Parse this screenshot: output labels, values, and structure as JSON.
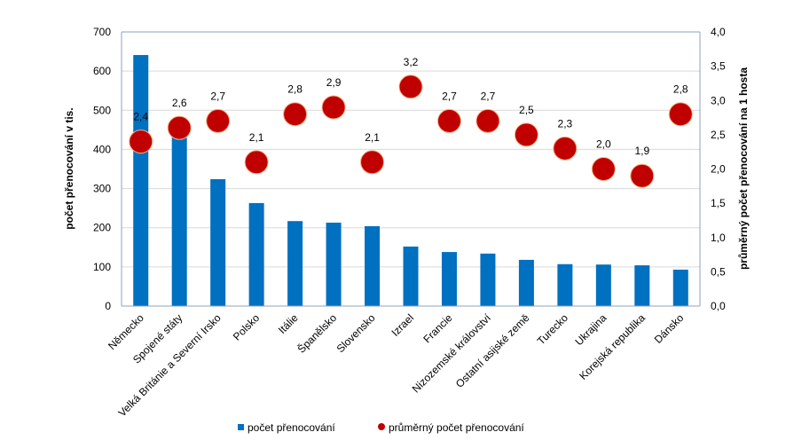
{
  "chart_data": {
    "type": "bar+scatter",
    "categories": [
      "Německo",
      "Spojené státy",
      "Velká Británie a Severní Irsko",
      "Polsko",
      "Itálie",
      "Španělsko",
      "Slovensko",
      "Izrael",
      "Francie",
      "Nizozemské království",
      "Ostatní asijské země",
      "Turecko",
      "Ukrajina",
      "Korejská republika",
      "Dánsko"
    ],
    "series": [
      {
        "name": "počet přenocování",
        "axis": "left",
        "type": "bar",
        "color": "#0070C0",
        "values": [
          641,
          435,
          324,
          263,
          217,
          213,
          204,
          152,
          138,
          134,
          118,
          107,
          106,
          104,
          93
        ]
      },
      {
        "name": "průměrný počet přenocování",
        "axis": "right",
        "type": "scatter",
        "color": "#C00000",
        "values": [
          2.4,
          2.6,
          2.7,
          2.1,
          2.8,
          2.9,
          2.1,
          3.2,
          2.7,
          2.7,
          2.5,
          2.3,
          2.0,
          1.9,
          2.8
        ],
        "labels": [
          "2,4",
          "2,6",
          "2,7",
          "2,1",
          "2,8",
          "2,9",
          "2,1",
          "3,2",
          "2,7",
          "2,7",
          "2,5",
          "2,3",
          "2,0",
          "1,9",
          "2,8"
        ]
      }
    ],
    "ylabel": "počet přenocování v tis.",
    "ylabel_right": "průměrný počet přenocování na 1 hosta",
    "ylim": [
      0,
      700
    ],
    "ylim_right": [
      0,
      4
    ],
    "yticks": [
      "0",
      "100",
      "200",
      "300",
      "400",
      "500",
      "600",
      "700"
    ],
    "yticks_right": [
      "0,0",
      "0,5",
      "1,0",
      "1,5",
      "2,0",
      "2,5",
      "3,0",
      "3,5",
      "4,0"
    ],
    "grid": true,
    "legend": "bottom"
  }
}
